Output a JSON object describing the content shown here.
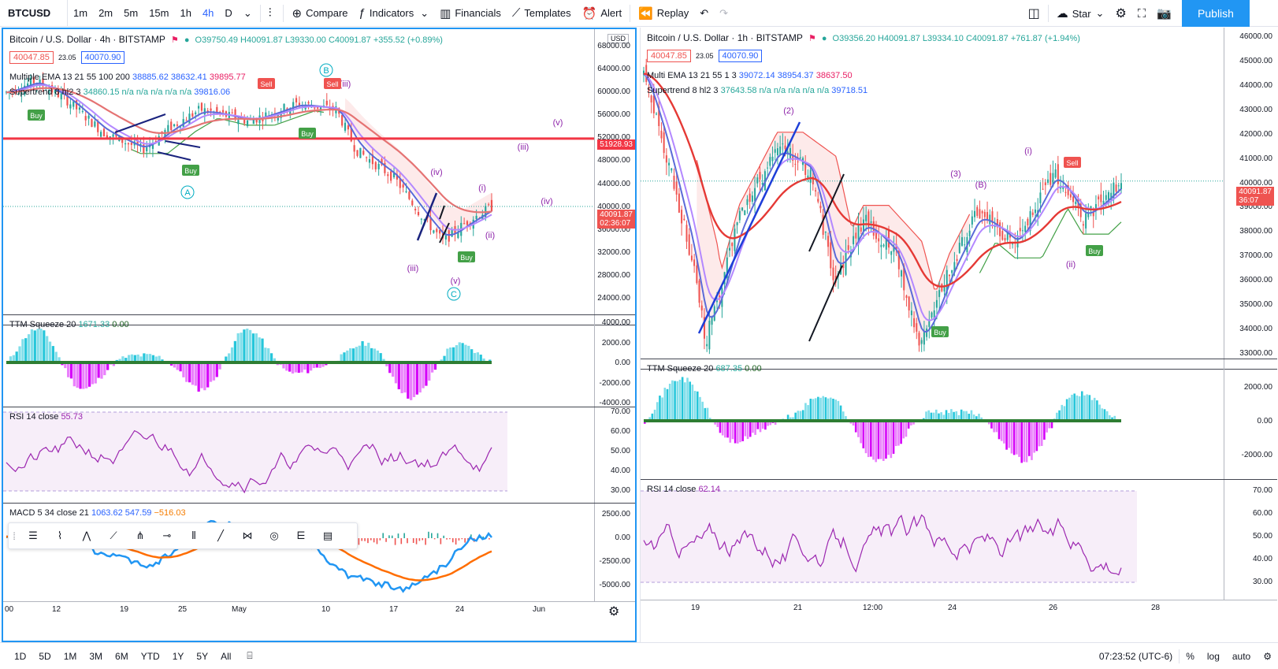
{
  "toolbar": {
    "symbol": "BTCUSD",
    "intervals": [
      "1m",
      "2m",
      "5m",
      "15m",
      "1h",
      "4h",
      "D"
    ],
    "active_interval": "4h",
    "compare": "Compare",
    "indicators": "Indicators",
    "financials": "Financials",
    "templates": "Templates",
    "alert": "Alert",
    "replay": "Replay",
    "star": "Star",
    "publish": "Publish"
  },
  "left_chart": {
    "title": "Bitcoin / U.S. Dollar · 4h · BITSTAMP",
    "ohlc": "O39750.49 H40091.87 L39330.00 C40091.87 +355.52 (+0.89%)",
    "bid": "40047.85",
    "spread": "23.05",
    "ask": "40070.90",
    "ema_label": "Multiple EMA 13 21 55 100 200",
    "ema_values": [
      "38885.62",
      "38632.41",
      "39895.77"
    ],
    "supertrend_label": "Supertrend 8 hl2 3",
    "supertrend_values": "34860.15 n/a n/a n/a n/a n/a",
    "supertrend_last": "39816.06",
    "currency": "USD",
    "price_levels": [
      "68000.00",
      "64000.00",
      "60000.00",
      "56000.00",
      "52000.00",
      "48000.00",
      "44000.00",
      "40000.00",
      "36000.00",
      "32000.00",
      "28000.00",
      "24000.00"
    ],
    "hline_price": "51928.93",
    "last_price": "40091.87",
    "countdown": "02:36:07",
    "ttm_label": "TTM Squeeze 20",
    "ttm_values": [
      "1671.33",
      "0.00"
    ],
    "ttm_levels": [
      "4000.00",
      "2000.00",
      "0.00",
      "-2000.00",
      "-4000.00"
    ],
    "rsi_label": "RSI 14 close",
    "rsi_value": "55.73",
    "rsi_levels": [
      "70.00",
      "60.00",
      "50.00",
      "40.00",
      "30.00"
    ],
    "macd_label": "MACD 5 34 close 21",
    "macd_values": [
      "1063.62",
      "547.59",
      "−516.03"
    ],
    "macd_levels": [
      "2500.00",
      "0.00",
      "-2500.00",
      "-5000.00"
    ],
    "time_labels": [
      "00",
      "12",
      "19",
      "25",
      "May",
      "10",
      "17",
      "24",
      "Jun"
    ],
    "wave_labels": [
      "(iii)",
      "(v)",
      "(iv)",
      "(iii)",
      "(v)",
      "Buy",
      "Sell",
      "Buy",
      "Buy"
    ]
  },
  "right_chart": {
    "title": "Bitcoin / U.S. Dollar · 1h · BITSTAMP",
    "ohlc": "O39356.20 H40091.87 L39334.10 C40091.87 +761.87 (+1.94%)",
    "bid": "40047.85",
    "spread": "23.05",
    "ask": "40070.90",
    "ema_label": "Multi EMA 13 21 55 1 3",
    "ema_values": [
      "39072.14",
      "38954.37",
      "38637.50"
    ],
    "supertrend_label": "Supertrend 8 hl2 3",
    "supertrend_values": "37643.58 n/a n/a n/a n/a n/a",
    "supertrend_last": "39718.51",
    "price_levels": [
      "46000.00",
      "45000.00",
      "44000.00",
      "43000.00",
      "42000.00",
      "41000.00",
      "40000.00",
      "39000.00",
      "38000.00",
      "37000.00",
      "36000.00",
      "35000.00",
      "34000.00",
      "33000.00"
    ],
    "last_price": "40091.87",
    "countdown": "36:07",
    "ttm_label": "TTM Squeeze 20",
    "ttm_values": [
      "687.35",
      "0.00"
    ],
    "ttm_levels": [
      "2000.00",
      "0.00",
      "-2000.00"
    ],
    "rsi_label": "RSI 14 close",
    "rsi_value": "62.14",
    "rsi_levels": [
      "70.00",
      "60.00",
      "50.00",
      "40.00",
      "30.00"
    ],
    "time_labels": [
      "19",
      "21",
      "12:00",
      "24",
      "26",
      "28"
    ],
    "wave_labels": [
      "(i)",
      "(ii)",
      "Sell",
      "Buy",
      "Buy"
    ]
  },
  "bottombar": {
    "ranges": [
      "1D",
      "5D",
      "1M",
      "3M",
      "6M",
      "YTD",
      "1Y",
      "5Y",
      "All"
    ],
    "clock": "07:23:52 (UTC-6)",
    "pct": "%",
    "log": "log",
    "auto": "auto"
  }
}
